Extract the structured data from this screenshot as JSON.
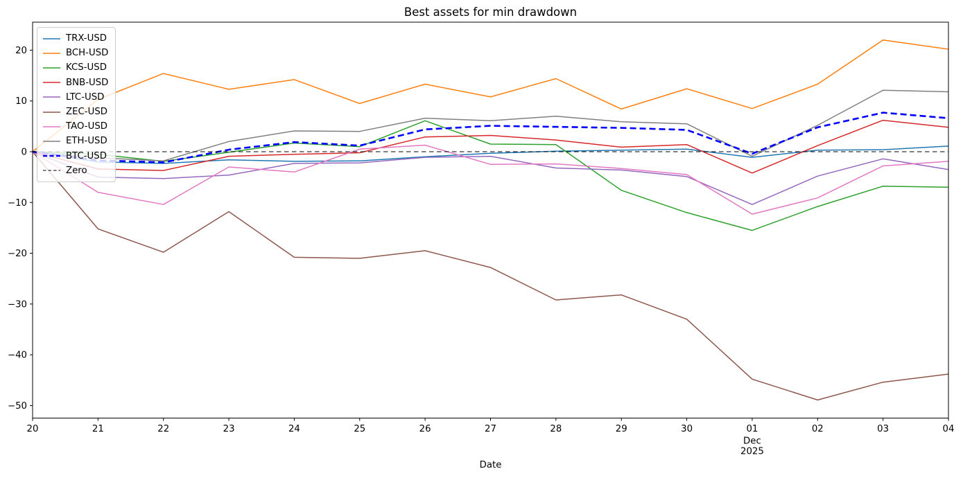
{
  "chart_data": {
    "type": "line",
    "title": "Best assets for min drawdown",
    "xlabel": "Date",
    "ylabel": "",
    "grid": false,
    "legend_position": "upper-left",
    "x_tick_labels": [
      "20",
      "21",
      "22",
      "23",
      "24",
      "25",
      "26",
      "27",
      "28",
      "29",
      "30",
      "01",
      "02",
      "03",
      "04"
    ],
    "x_extra_label": {
      "under_tick_index": 11,
      "lines": [
        "Dec",
        "2025"
      ]
    },
    "y_ticks": [
      20,
      10,
      0,
      -10,
      -20,
      -30,
      -40,
      -50
    ],
    "y_tick_labels": [
      "20",
      "10",
      "0",
      "−10",
      "−20",
      "−30",
      "−40",
      "−50"
    ],
    "ylim": [
      -52.5,
      25.5
    ],
    "series": [
      {
        "name": "TRX-USD",
        "color": "#1f77b4",
        "style": "solid",
        "width": 1.5,
        "values": [
          0,
          -2.0,
          -2.3,
          -1.6,
          -1.9,
          -1.8,
          -1.0,
          -0.3,
          0.1,
          0.3,
          0.5,
          -1.1,
          0.3,
          0.4,
          1.1
        ]
      },
      {
        "name": "BCH-USD",
        "color": "#ff7f0e",
        "style": "solid",
        "width": 1.5,
        "values": [
          0,
          10.3,
          15.4,
          12.3,
          14.2,
          9.5,
          13.3,
          10.8,
          14.4,
          8.4,
          12.4,
          8.5,
          13.3,
          22.0,
          20.2
        ]
      },
      {
        "name": "KCS-USD",
        "color": "#2ca02c",
        "style": "solid",
        "width": 1.5,
        "values": [
          0,
          -0.5,
          -1.9,
          -0.1,
          1.7,
          1.0,
          6.1,
          1.5,
          1.4,
          -7.6,
          -12.0,
          -15.5,
          -10.8,
          -6.8,
          -7.0
        ]
      },
      {
        "name": "BNB-USD",
        "color": "#d62728",
        "style": "solid",
        "width": 1.5,
        "values": [
          0,
          -3.4,
          -3.7,
          -0.9,
          -0.5,
          -0.2,
          2.9,
          3.2,
          2.3,
          0.9,
          1.4,
          -4.2,
          1.2,
          6.2,
          4.8
        ]
      },
      {
        "name": "LTC-USD",
        "color": "#9467bd",
        "style": "solid",
        "width": 1.5,
        "values": [
          0,
          -5.0,
          -5.3,
          -4.6,
          -2.3,
          -2.2,
          -1.1,
          -0.9,
          -3.2,
          -3.6,
          -4.9,
          -10.4,
          -4.8,
          -1.4,
          -3.5
        ]
      },
      {
        "name": "ZEC-USD",
        "color": "#8c564b",
        "style": "solid",
        "width": 1.5,
        "values": [
          0,
          -15.2,
          -19.8,
          -11.8,
          -20.8,
          -21.0,
          -19.5,
          -22.8,
          -29.2,
          -28.2,
          -33.0,
          -44.8,
          -48.9,
          -45.4,
          -43.8
        ]
      },
      {
        "name": "TAO-USD",
        "color": "#e377c2",
        "style": "solid",
        "width": 1.5,
        "values": [
          0,
          -8.0,
          -10.4,
          -3.0,
          -4.0,
          0.5,
          1.3,
          -2.5,
          -2.4,
          -3.3,
          -4.5,
          -12.3,
          -9.1,
          -2.8,
          -1.9
        ]
      },
      {
        "name": "ETH-USD",
        "color": "#7f7f7f",
        "style": "solid",
        "width": 1.5,
        "values": [
          0,
          -1.2,
          -1.8,
          2.0,
          4.1,
          4.0,
          6.6,
          6.1,
          7.0,
          5.9,
          5.5,
          -0.9,
          5.2,
          12.1,
          11.8
        ]
      },
      {
        "name": "BTC-USD",
        "color": "#0000ff",
        "style": "dashed",
        "width": 2.6,
        "values": [
          0,
          -1.7,
          -2.1,
          0.4,
          1.9,
          1.2,
          4.4,
          5.1,
          4.9,
          4.7,
          4.3,
          -0.4,
          4.8,
          7.7,
          6.6
        ]
      },
      {
        "name": "Zero",
        "color": "#000000",
        "style": "dashed",
        "width": 1.1,
        "values": [
          0,
          0,
          0,
          0,
          0,
          0,
          0,
          0,
          0,
          0,
          0,
          0,
          0,
          0,
          0
        ]
      }
    ]
  }
}
